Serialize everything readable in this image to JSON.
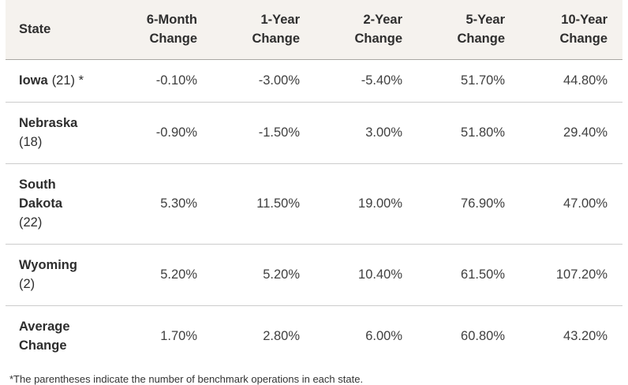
{
  "chart_data": {
    "type": "table",
    "columns": [
      "State",
      "6-Month Change",
      "1-Year Change",
      "2-Year Change",
      "5-Year Change",
      "10-Year Change"
    ],
    "rows": [
      {
        "name": "Iowa",
        "note": "(21) *",
        "values": [
          "-0.10%",
          "-3.00%",
          "-5.40%",
          "51.70%",
          "44.80%"
        ]
      },
      {
        "name": "Nebraska",
        "note": "(18)",
        "values": [
          "-0.90%",
          "-1.50%",
          "3.00%",
          "51.80%",
          "29.40%"
        ]
      },
      {
        "name": "South Dakota",
        "note": "(22)",
        "values": [
          "5.30%",
          "11.50%",
          "19.00%",
          "76.90%",
          "47.00%"
        ]
      },
      {
        "name": "Wyoming",
        "note": "(2)",
        "values": [
          "5.20%",
          "5.20%",
          "10.40%",
          "61.50%",
          "107.20%"
        ]
      },
      {
        "name": "Average Change",
        "note": "",
        "values": [
          "1.70%",
          "2.80%",
          "6.00%",
          "60.80%",
          "43.20%"
        ]
      }
    ],
    "footnote": "*The parentheses indicate the number of benchmark operations in each state.",
    "layout": {
      "header_bg": "#f5f2ee",
      "row_border": "#cccccc",
      "header_border": "#a9a7a3"
    }
  }
}
